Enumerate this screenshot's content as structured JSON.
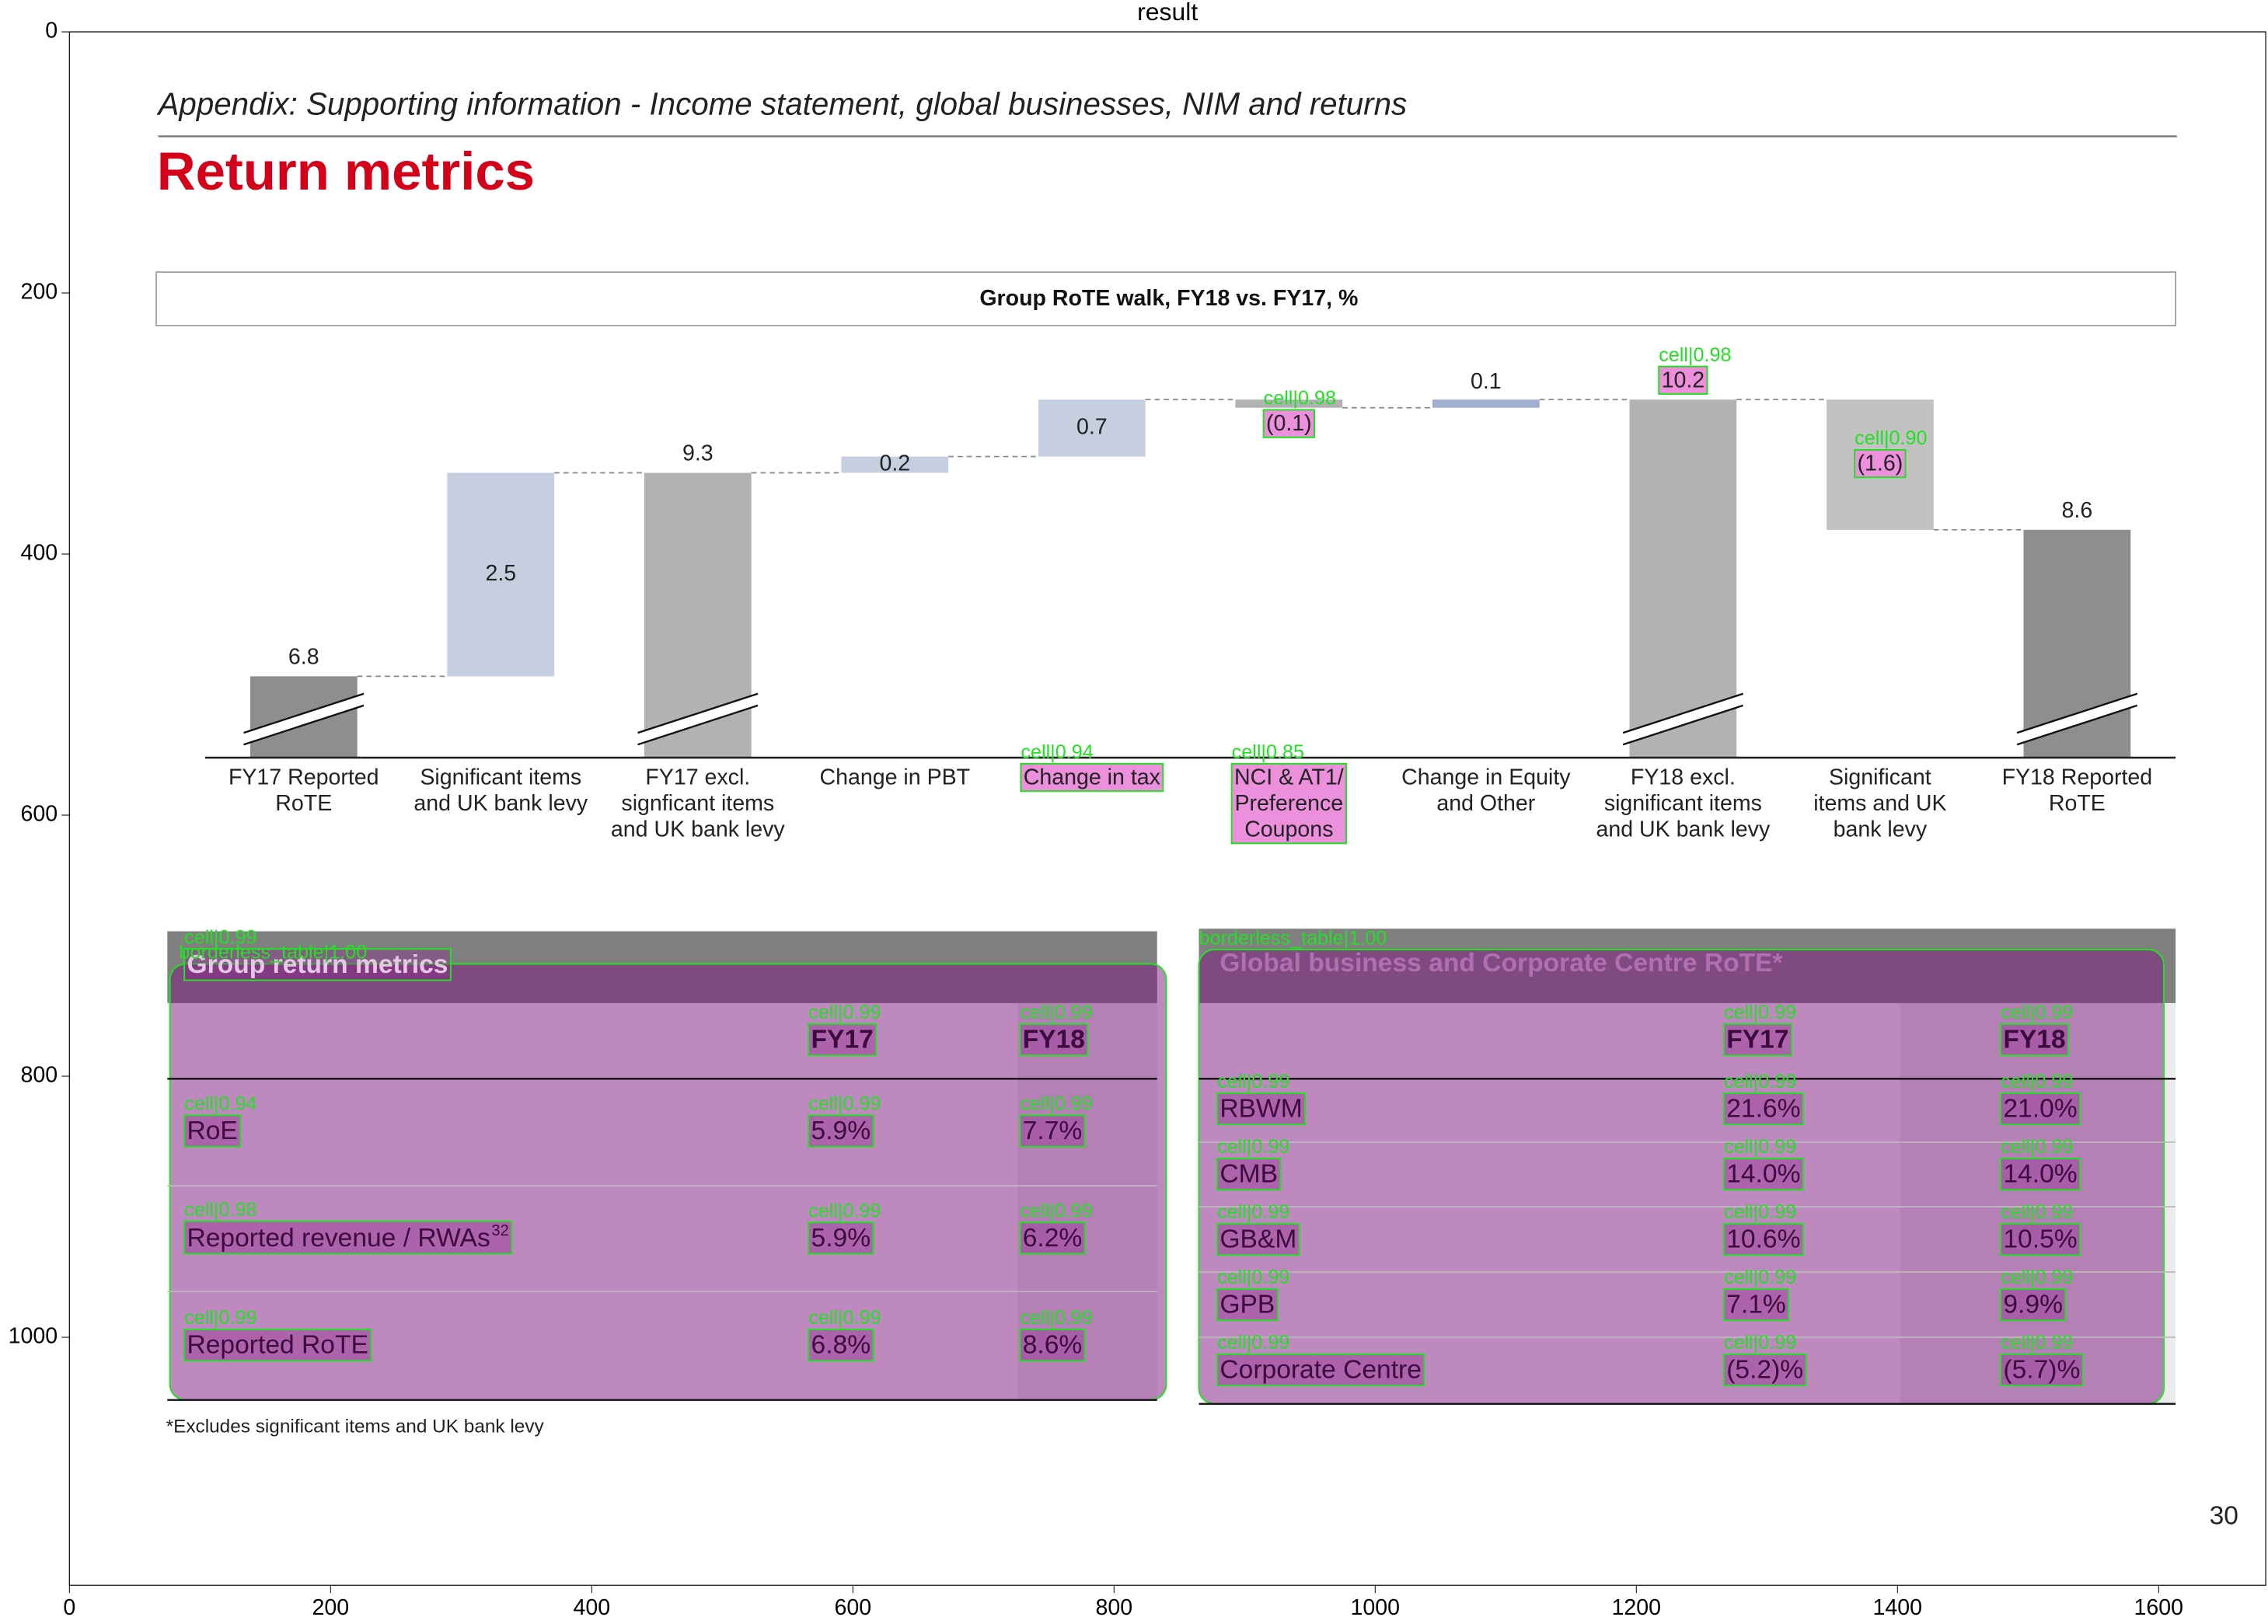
{
  "figure": {
    "title": "result",
    "xticks": [
      0,
      200,
      400,
      600,
      800,
      1000,
      1200,
      1400,
      1600
    ],
    "yticks": [
      0,
      200,
      400,
      600,
      800,
      1000
    ]
  },
  "slide": {
    "header": "Appendix: Supporting information - Income statement, global businesses, NIM and returns",
    "title": "Return metrics",
    "footnote": "*Excludes significant items and UK bank levy",
    "page_number": "30"
  },
  "chart_data": {
    "type": "waterfall",
    "title": "Group RoTE walk, FY18 vs. FY17, %",
    "categories": [
      [
        "FY17 Reported",
        "RoTE"
      ],
      [
        "Significant items",
        "and UK bank levy"
      ],
      [
        "FY17 excl.",
        "signficant items",
        "and UK bank levy"
      ],
      [
        "Change in PBT"
      ],
      [
        "Change in tax"
      ],
      [
        "NCI & AT1/",
        "Preference",
        "Coupons"
      ],
      [
        "Change in Equity",
        "and Other"
      ],
      [
        "FY18 excl.",
        "significant items",
        "and UK bank levy"
      ],
      [
        "Significant",
        "items and UK",
        "bank levy"
      ],
      [
        "FY18 Reported",
        "RoTE"
      ]
    ],
    "values": [
      6.8,
      2.5,
      9.3,
      0.2,
      0.7,
      -0.1,
      0.1,
      10.2,
      -1.6,
      8.6
    ],
    "value_labels": [
      "6.8",
      "2.5",
      "9.3",
      "0.2",
      "0.7",
      "(0.1)",
      "0.1",
      "10.2",
      "(1.6)",
      "8.6"
    ],
    "kinds": [
      "total",
      "delta",
      "total",
      "delta",
      "delta",
      "delta",
      "delta",
      "total",
      "delta",
      "total"
    ],
    "colors": [
      "#8e8e8e",
      "#c5cfdf",
      "#b2b2b2",
      "#c5cfdf",
      "#c5cfdf",
      "#b2b2b2",
      "#9fb0cc",
      "#b2b2b2",
      "#c2c2c2",
      "#8e8e8e"
    ],
    "ylim": [
      5.8,
      10.5
    ],
    "axis_break": true
  },
  "tables": [
    {
      "title": "Group return metrics",
      "columns": [
        "FY17",
        "FY18"
      ],
      "rows": [
        [
          "RoE",
          "5.9%",
          "7.7%"
        ],
        [
          "Reported revenue / RWAs",
          "5.9%",
          "6.2%"
        ],
        [
          "Reported RoTE",
          "6.8%",
          "8.6%"
        ]
      ],
      "row_notes": [
        null,
        "32",
        null
      ]
    },
    {
      "title": "Global business and Corporate Centre RoTE*",
      "columns": [
        "FY17",
        "FY18"
      ],
      "rows": [
        [
          "RBWM",
          "21.6%",
          "21.0%"
        ],
        [
          "CMB",
          "14.0%",
          "14.0%"
        ],
        [
          "GB&M",
          "10.6%",
          "10.5%"
        ],
        [
          "GPB",
          "7.1%",
          "9.9%"
        ],
        [
          "Corporate Centre",
          "(5.2)%",
          "(5.7)%"
        ]
      ]
    }
  ],
  "detections": {
    "chart": [
      "cell|0.98",
      "cell|0.98",
      "cell|0.90",
      "cell|0.94",
      "cell|0.85"
    ],
    "tables": [
      "borderless_table|1.00",
      "borderless_table|1.00"
    ],
    "table_0_cells": [
      "cell|0.99",
      "cell|0.99",
      "cell|0.99",
      "cell|0.94",
      "cell|0.99",
      "cell|0.99",
      "cell|0.98",
      "cell|0.99",
      "cell|0.99",
      "cell|0.99",
      "cell|0.99",
      "cell|0.99"
    ],
    "table_1_cells": [
      "cell|0.99",
      "cell|0.99",
      "cell|0.99",
      "cell|0.99",
      "cell|0.99",
      "cell|0.99",
      "cell|0.99",
      "cell|0.99",
      "cell|0.99",
      "cell|0.99",
      "cell|0.99",
      "cell|0.99",
      "cell|0.99",
      "cell|0.99",
      "cell|0.99",
      "cell|0.99",
      "cell|0.99"
    ]
  }
}
